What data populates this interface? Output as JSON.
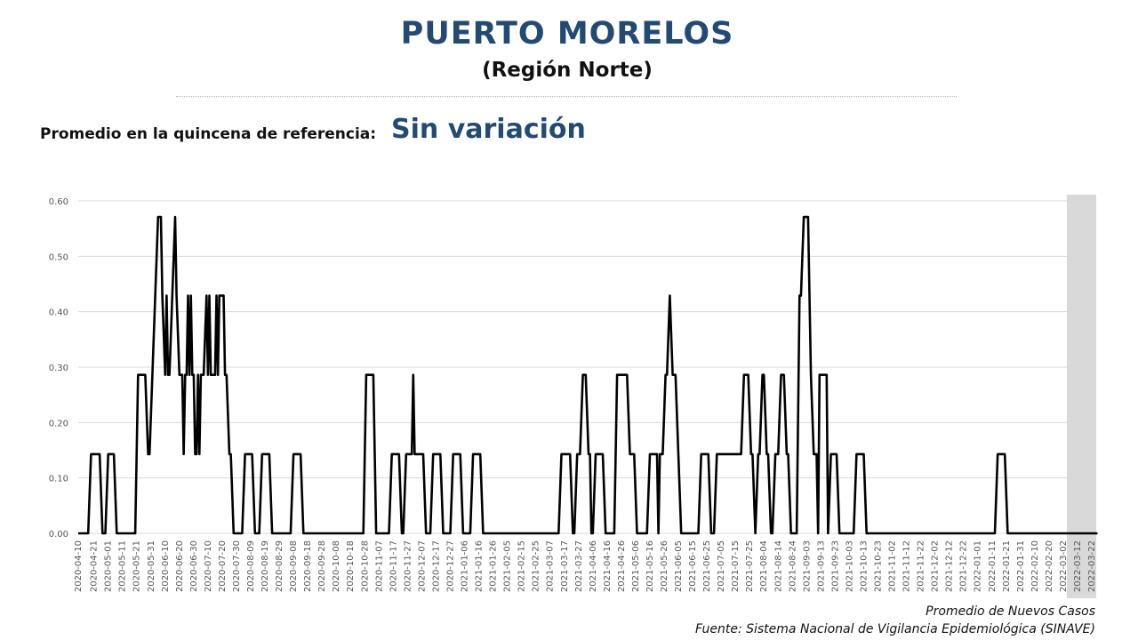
{
  "header": {
    "title": "PUERTO MORELOS",
    "subtitle": "(Región Norte)"
  },
  "reference": {
    "label": "Promedio en la quincena de referencia:",
    "value": "Sin variación"
  },
  "footer": {
    "series_label": "Promedio de Nuevos Casos",
    "source": "Fuente: Sistema Nacional de Vigilancia Epidemiológica (SINAVE)"
  },
  "colors": {
    "title": "#234a72",
    "line": "#000000",
    "shade": "#d9d9d9",
    "grid": "#d9d9d9"
  },
  "chart_data": {
    "type": "line",
    "series": [
      {
        "name": "Promedio de Nuevos Casos",
        "values_ref": "values"
      }
    ],
    "ylim": [
      0,
      0.6
    ],
    "yticks": [
      "0.00",
      "0.10",
      "0.20",
      "0.30",
      "0.40",
      "0.50",
      "0.60"
    ],
    "xticks": [
      "2020-04-10",
      "2020-04-21",
      "2020-05-01",
      "2020-05-11",
      "2020-05-21",
      "2020-05-31",
      "2020-06-10",
      "2020-06-20",
      "2020-06-30",
      "2020-07-10",
      "2020-07-20",
      "2020-07-30",
      "2020-08-09",
      "2020-08-19",
      "2020-08-29",
      "2020-09-08",
      "2020-09-18",
      "2020-09-28",
      "2020-10-08",
      "2020-10-18",
      "2020-10-28",
      "2020-11-07",
      "2020-11-17",
      "2020-11-27",
      "2020-12-07",
      "2020-12-17",
      "2020-12-27",
      "2021-01-06",
      "2021-01-16",
      "2021-01-26",
      "2021-02-05",
      "2021-02-15",
      "2021-02-25",
      "2021-03-07",
      "2021-03-17",
      "2021-03-27",
      "2021-04-06",
      "2021-04-16",
      "2021-04-26",
      "2021-05-06",
      "2021-05-16",
      "2021-05-26",
      "2021-06-05",
      "2021-06-15",
      "2021-06-25",
      "2021-07-05",
      "2021-07-15",
      "2021-07-25",
      "2021-08-04",
      "2021-08-14",
      "2021-08-24",
      "2021-09-03",
      "2021-09-13",
      "2021-09-23",
      "2021-10-03",
      "2021-10-13",
      "2021-10-23",
      "2021-11-02",
      "2021-11-12",
      "2021-11-22",
      "2021-12-02",
      "2021-12-12",
      "2021-12-22",
      "2022-01-01",
      "2022-01-11",
      "2022-01-21",
      "2022-01-31",
      "2022-02-10",
      "2022-02-20",
      "2022-03-02",
      "2022-03-12",
      "2022-03-22"
    ],
    "shaded_from": "2022-03-12",
    "grid": true,
    "points": [
      [
        "2020-04-10",
        0
      ],
      [
        "2020-04-17",
        0
      ],
      [
        "2020-04-19",
        0.143
      ],
      [
        "2020-04-25",
        0.143
      ],
      [
        "2020-04-27",
        0
      ],
      [
        "2020-04-29",
        0
      ],
      [
        "2020-05-01",
        0.143
      ],
      [
        "2020-05-05",
        0.143
      ],
      [
        "2020-05-07",
        0
      ],
      [
        "2020-05-20",
        0
      ],
      [
        "2020-05-22",
        0.286
      ],
      [
        "2020-05-27",
        0.286
      ],
      [
        "2020-05-29",
        0.143
      ],
      [
        "2020-05-30",
        0.143
      ],
      [
        "2020-06-01",
        0.286
      ],
      [
        "2020-06-03",
        0.429
      ],
      [
        "2020-06-05",
        0.571
      ],
      [
        "2020-06-07",
        0.571
      ],
      [
        "2020-06-08",
        0.429
      ],
      [
        "2020-06-10",
        0.286
      ],
      [
        "2020-06-11",
        0.429
      ],
      [
        "2020-06-12",
        0.286
      ],
      [
        "2020-06-13",
        0.286
      ],
      [
        "2020-06-15",
        0.429
      ],
      [
        "2020-06-17",
        0.571
      ],
      [
        "2020-06-18",
        0.429
      ],
      [
        "2020-06-20",
        0.286
      ],
      [
        "2020-06-22",
        0.286
      ],
      [
        "2020-06-23",
        0.143
      ],
      [
        "2020-06-24",
        0.286
      ],
      [
        "2020-06-25",
        0.286
      ],
      [
        "2020-06-26",
        0.429
      ],
      [
        "2020-06-27",
        0.286
      ],
      [
        "2020-06-28",
        0.429
      ],
      [
        "2020-06-29",
        0.286
      ],
      [
        "2020-06-30",
        0.286
      ],
      [
        "2020-07-01",
        0.143
      ],
      [
        "2020-07-02",
        0.143
      ],
      [
        "2020-07-03",
        0.286
      ],
      [
        "2020-07-04",
        0.143
      ],
      [
        "2020-07-05",
        0.286
      ],
      [
        "2020-07-07",
        0.286
      ],
      [
        "2020-07-09",
        0.429
      ],
      [
        "2020-07-10",
        0.286
      ],
      [
        "2020-07-11",
        0.429
      ],
      [
        "2020-07-12",
        0.286
      ],
      [
        "2020-07-15",
        0.286
      ],
      [
        "2020-07-16",
        0.429
      ],
      [
        "2020-07-17",
        0.286
      ],
      [
        "2020-07-18",
        0.429
      ],
      [
        "2020-07-21",
        0.429
      ],
      [
        "2020-07-22",
        0.286
      ],
      [
        "2020-07-23",
        0.286
      ],
      [
        "2020-07-25",
        0.143
      ],
      [
        "2020-07-26",
        0.143
      ],
      [
        "2020-07-28",
        0
      ],
      [
        "2020-08-03",
        0
      ],
      [
        "2020-08-05",
        0.143
      ],
      [
        "2020-08-10",
        0.143
      ],
      [
        "2020-08-12",
        0
      ],
      [
        "2020-08-15",
        0
      ],
      [
        "2020-08-17",
        0.143
      ],
      [
        "2020-08-22",
        0.143
      ],
      [
        "2020-08-24",
        0
      ],
      [
        "2020-09-06",
        0
      ],
      [
        "2020-09-08",
        0.143
      ],
      [
        "2020-09-13",
        0.143
      ],
      [
        "2020-09-15",
        0
      ],
      [
        "2020-10-27",
        0
      ],
      [
        "2020-10-29",
        0.286
      ],
      [
        "2020-11-03",
        0.286
      ],
      [
        "2020-11-05",
        0
      ],
      [
        "2020-11-14",
        0
      ],
      [
        "2020-11-16",
        0.143
      ],
      [
        "2020-11-21",
        0.143
      ],
      [
        "2020-11-23",
        0
      ],
      [
        "2020-11-24",
        0
      ],
      [
        "2020-11-26",
        0.143
      ],
      [
        "2020-11-30",
        0.143
      ],
      [
        "2020-12-01",
        0.286
      ],
      [
        "2020-12-02",
        0.143
      ],
      [
        "2020-12-08",
        0.143
      ],
      [
        "2020-12-10",
        0
      ],
      [
        "2020-12-13",
        0
      ],
      [
        "2020-12-15",
        0.143
      ],
      [
        "2020-12-20",
        0.143
      ],
      [
        "2020-12-22",
        0
      ],
      [
        "2020-12-27",
        0
      ],
      [
        "2020-12-29",
        0.143
      ],
      [
        "2021-01-03",
        0.143
      ],
      [
        "2021-01-05",
        0
      ],
      [
        "2021-01-10",
        0
      ],
      [
        "2021-01-12",
        0.143
      ],
      [
        "2021-01-17",
        0.143
      ],
      [
        "2021-01-19",
        0
      ],
      [
        "2021-03-13",
        0
      ],
      [
        "2021-03-15",
        0.143
      ],
      [
        "2021-03-21",
        0.143
      ],
      [
        "2021-03-23",
        0
      ],
      [
        "2021-03-24",
        0
      ],
      [
        "2021-03-26",
        0.143
      ],
      [
        "2021-03-28",
        0.143
      ],
      [
        "2021-03-30",
        0.286
      ],
      [
        "2021-04-01",
        0.286
      ],
      [
        "2021-04-03",
        0.143
      ],
      [
        "2021-04-04",
        0.143
      ],
      [
        "2021-04-05",
        0
      ],
      [
        "2021-04-06",
        0
      ],
      [
        "2021-04-08",
        0.143
      ],
      [
        "2021-04-13",
        0.143
      ],
      [
        "2021-04-15",
        0
      ],
      [
        "2021-04-21",
        0
      ],
      [
        "2021-04-23",
        0.286
      ],
      [
        "2021-04-30",
        0.286
      ],
      [
        "2021-05-02",
        0.143
      ],
      [
        "2021-05-05",
        0.143
      ],
      [
        "2021-05-07",
        0
      ],
      [
        "2021-05-14",
        0
      ],
      [
        "2021-05-16",
        0.143
      ],
      [
        "2021-05-21",
        0.143
      ],
      [
        "2021-05-22",
        0
      ],
      [
        "2021-05-23",
        0.143
      ],
      [
        "2021-05-25",
        0.143
      ],
      [
        "2021-05-27",
        0.286
      ],
      [
        "2021-05-28",
        0.286
      ],
      [
        "2021-05-30",
        0.429
      ],
      [
        "2021-06-01",
        0.286
      ],
      [
        "2021-06-03",
        0.286
      ],
      [
        "2021-06-05",
        0.143
      ],
      [
        "2021-06-07",
        0
      ],
      [
        "2021-06-19",
        0
      ],
      [
        "2021-06-21",
        0.143
      ],
      [
        "2021-06-26",
        0.143
      ],
      [
        "2021-06-28",
        0
      ],
      [
        "2021-06-30",
        0
      ],
      [
        "2021-07-02",
        0.143
      ],
      [
        "2021-07-19",
        0.143
      ],
      [
        "2021-07-21",
        0.286
      ],
      [
        "2021-07-24",
        0.286
      ],
      [
        "2021-07-26",
        0.143
      ],
      [
        "2021-07-27",
        0.143
      ],
      [
        "2021-07-29",
        0
      ],
      [
        "2021-07-31",
        0.143
      ],
      [
        "2021-08-01",
        0.143
      ],
      [
        "2021-08-03",
        0.286
      ],
      [
        "2021-08-04",
        0.286
      ],
      [
        "2021-08-06",
        0.143
      ],
      [
        "2021-08-07",
        0.143
      ],
      [
        "2021-08-09",
        0
      ],
      [
        "2021-08-10",
        0
      ],
      [
        "2021-08-12",
        0.143
      ],
      [
        "2021-08-14",
        0.143
      ],
      [
        "2021-08-16",
        0.286
      ],
      [
        "2021-08-18",
        0.286
      ],
      [
        "2021-08-20",
        0.143
      ],
      [
        "2021-08-21",
        0.143
      ],
      [
        "2021-08-23",
        0
      ],
      [
        "2021-08-27",
        0
      ],
      [
        "2021-08-29",
        0.429
      ],
      [
        "2021-08-30",
        0.429
      ],
      [
        "2021-09-01",
        0.571
      ],
      [
        "2021-09-04",
        0.571
      ],
      [
        "2021-09-06",
        0.286
      ],
      [
        "2021-09-08",
        0.143
      ],
      [
        "2021-09-10",
        0.143
      ],
      [
        "2021-09-11",
        0
      ],
      [
        "2021-09-12",
        0.286
      ],
      [
        "2021-09-17",
        0.286
      ],
      [
        "2021-09-18",
        0
      ],
      [
        "2021-09-20",
        0.143
      ],
      [
        "2021-09-24",
        0.143
      ],
      [
        "2021-09-26",
        0
      ],
      [
        "2021-10-06",
        0
      ],
      [
        "2021-10-08",
        0.143
      ],
      [
        "2021-10-13",
        0.143
      ],
      [
        "2021-10-15",
        0
      ],
      [
        "2022-01-13",
        0
      ],
      [
        "2022-01-15",
        0.143
      ],
      [
        "2022-01-20",
        0.143
      ],
      [
        "2022-01-22",
        0
      ],
      [
        "2022-03-26",
        0
      ]
    ]
  }
}
